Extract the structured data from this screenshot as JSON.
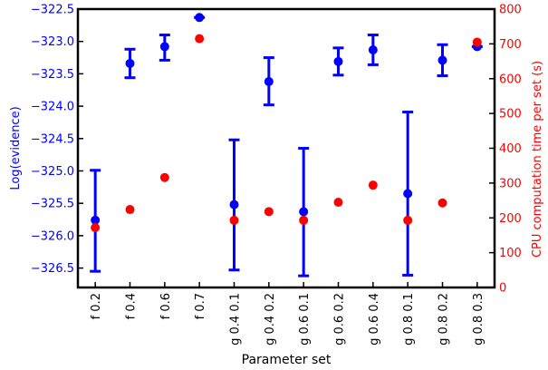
{
  "chart_data": {
    "type": "scatter",
    "xlabel": "Parameter set",
    "ylabel_left": "Log(evidence)",
    "ylabel_right": "CPU computation time per set (s)",
    "categories": [
      "f 0.2",
      "f 0.4",
      "f 0.6",
      "f 0.7",
      "g 0.4 0.1",
      "g 0.4 0.2",
      "g 0.6 0.1",
      "g 0.6 0.2",
      "g 0.6 0.4",
      "g 0.8 0.1",
      "g 0.8 0.2",
      "g 0.8 0.3"
    ],
    "ylim_left": [
      -326.8,
      -322.5
    ],
    "yticks_left": [
      "-322.5",
      "-323.0",
      "-323.5",
      "-324.0",
      "-324.5",
      "-325.0",
      "-325.5",
      "-326.0",
      "-326.5"
    ],
    "ylim_right": [
      0,
      800
    ],
    "yticks_right": [
      "0",
      "100",
      "200",
      "300",
      "400",
      "500",
      "600",
      "700",
      "800"
    ],
    "colors": {
      "evidence": "#0000ff",
      "cpu": "#ff0000",
      "axes": "#000000"
    },
    "series": [
      {
        "axis": "left",
        "values": [
          -325.76,
          -323.34,
          -323.08,
          -322.63,
          -325.52,
          -323.62,
          -325.63,
          -323.31,
          -323.13,
          -325.35,
          -323.29,
          -323.08
        ],
        "err_low": [
          -326.55,
          -323.56,
          -323.29,
          -322.63,
          -326.53,
          -323.98,
          -326.62,
          -323.52,
          -323.36,
          -326.61,
          -323.53,
          -323.08
        ],
        "err_high": [
          -324.99,
          -323.12,
          -322.9,
          -322.63,
          -324.52,
          -323.25,
          -324.65,
          -323.1,
          -322.9,
          -324.09,
          -323.05,
          -323.08
        ]
      },
      {
        "axis": "right",
        "values": [
          172,
          224,
          316,
          715,
          193,
          218,
          193,
          245,
          294,
          193,
          243,
          705
        ]
      }
    ]
  }
}
